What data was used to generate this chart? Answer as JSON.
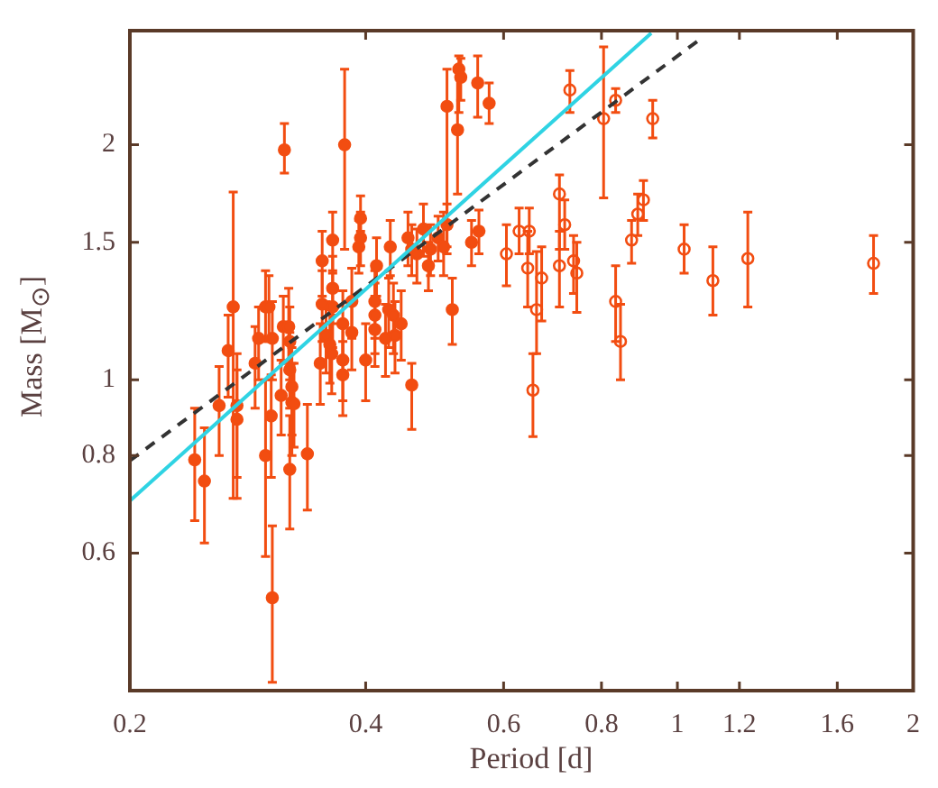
{
  "chart_data": {
    "type": "scatter",
    "xlabel": "Period [d]",
    "ylabel": "Mass [M$_{⊙}$]",
    "log": "xy",
    "xlim": [
      0.2,
      2
    ],
    "ylim": [
      0.4,
      2.8
    ],
    "xticks": [
      0.2,
      0.4,
      0.6,
      0.8,
      1,
      1.2,
      1.6,
      2
    ],
    "yticks": [
      0.6,
      0.8,
      1,
      1.5,
      2
    ],
    "grid": false,
    "legend": false,
    "marker": "circle",
    "series": [
      {
        "type": "scatter",
        "color": "#f24d11",
        "x": [
          0.315,
          0.376,
          0.271,
          0.267,
          0.242,
          0.249,
          0.26,
          0.274,
          0.298,
          0.303,
          0.304,
          0.312,
          0.32,
          0.322,
          0.322,
          0.337,
          0.374,
          0.458,
          0.274,
          0.298,
          0.301,
          0.292,
          0.289,
          0.304,
          0.314,
          0.319,
          0.32,
          0.32,
          0.324,
          0.352,
          0.352,
          0.363,
          0.363,
          0.35,
          0.362,
          0.508,
          0.526,
          0.529,
          0.524,
          0.556,
          0.575,
          0.394,
          0.392,
          0.394,
          0.413,
          0.43,
          0.453,
          0.458,
          0.465,
          0.474,
          0.484,
          0.495,
          0.481,
          0.516,
          0.546,
          0.558,
          0.411,
          0.411,
          0.411,
          0.428,
          0.434,
          0.444,
          0.436,
          0.424,
          0.4,
          0.384,
          0.384,
          0.374,
          0.374,
          0.363,
          0.356,
          0.36,
          0.503,
          0.508
        ],
        "values": [
          1.97,
          2.0,
          1.24,
          1.09,
          0.79,
          0.742,
          0.927,
          0.927,
          0.8,
          0.899,
          0.526,
          0.955,
          0.768,
          0.936,
          0.98,
          0.804,
          1.015,
          0.985,
          0.89,
          1.24,
          1.24,
          1.13,
          1.05,
          1.13,
          1.17,
          1.17,
          1.12,
          1.03,
          0.932,
          1.42,
          1.25,
          1.51,
          1.24,
          1.05,
          1.08,
          2.24,
          2.5,
          2.44,
          2.09,
          2.4,
          2.26,
          1.61,
          1.48,
          1.52,
          1.4,
          1.48,
          1.52,
          1.47,
          1.45,
          1.56,
          1.47,
          1.52,
          1.4,
          1.23,
          1.5,
          1.55,
          1.26,
          1.21,
          1.16,
          1.23,
          1.21,
          1.18,
          1.14,
          1.13,
          1.06,
          1.26,
          1.15,
          1.18,
          1.06,
          1.31,
          1.14,
          1.11,
          1.48,
          1.58
        ],
        "errors": [
          [
            1.84,
            2.13
          ],
          [
            1.47,
            2.5
          ],
          [
            0.705,
            1.74
          ],
          [
            0.95,
            1.21
          ],
          [
            0.66,
            0.92
          ],
          [
            0.618,
            0.868
          ],
          [
            0.8,
            1.04
          ],
          [
            0.705,
            1.08
          ],
          [
            0.594,
            1.0
          ],
          [
            0.75,
            1.015
          ],
          [
            0.41,
            0.65
          ],
          [
            0.85,
            1.06
          ],
          [
            0.644,
            0.9
          ],
          [
            0.8,
            1.05
          ],
          [
            0.85,
            1.1
          ],
          [
            0.681,
            0.93
          ],
          [
            0.9,
            1.12
          ],
          [
            0.864,
            1.05
          ],
          [
            0.75,
            1.03
          ],
          [
            1.12,
            1.38
          ],
          [
            1.12,
            1.36
          ],
          [
            1.0,
            1.24
          ],
          [
            0.92,
            1.17
          ],
          [
            1.0,
            1.26
          ],
          [
            1.05,
            1.28
          ],
          [
            1.05,
            1.31
          ],
          [
            1.0,
            1.24
          ],
          [
            0.92,
            1.15
          ],
          [
            0.82,
            1.05
          ],
          [
            1.28,
            1.55
          ],
          [
            1.12,
            1.38
          ],
          [
            1.38,
            1.64
          ],
          [
            1.1,
            1.37
          ],
          [
            0.93,
            1.18
          ],
          [
            0.96,
            1.21
          ],
          [
            1.45,
            2.5
          ],
          [
            2.2,
            2.6
          ],
          [
            2.28,
            2.58
          ],
          [
            1.73,
            2.5
          ],
          [
            2.17,
            2.6
          ],
          [
            2.13,
            2.4
          ],
          [
            1.55,
            1.72
          ],
          [
            1.37,
            1.6
          ],
          [
            1.4,
            1.64
          ],
          [
            1.28,
            1.52
          ],
          [
            1.36,
            1.6
          ],
          [
            1.4,
            1.64
          ],
          [
            1.36,
            1.58
          ],
          [
            1.33,
            1.56
          ],
          [
            1.44,
            1.68
          ],
          [
            1.36,
            1.58
          ],
          [
            1.42,
            1.62
          ],
          [
            1.3,
            1.5
          ],
          [
            1.11,
            1.35
          ],
          [
            1.4,
            1.6
          ],
          [
            1.45,
            1.65
          ],
          [
            1.13,
            1.38
          ],
          [
            1.08,
            1.33
          ],
          [
            1.04,
            1.28
          ],
          [
            1.1,
            1.35
          ],
          [
            1.08,
            1.33
          ],
          [
            1.06,
            1.3
          ],
          [
            1.02,
            1.26
          ],
          [
            1.01,
            1.25
          ],
          [
            0.94,
            1.18
          ],
          [
            1.13,
            1.39
          ],
          [
            1.03,
            1.27
          ],
          [
            1.05,
            1.3
          ],
          [
            0.94,
            1.18
          ],
          [
            1.18,
            1.44
          ],
          [
            1.02,
            1.26
          ],
          [
            0.99,
            1.23
          ],
          [
            1.36,
            1.64
          ],
          [
            1.48,
            1.68
          ]
        ]
      },
      {
        "type": "scatter",
        "color": "#f24d11",
        "marker": "circle",
        "x": [
          0.729,
          0.805,
          0.834,
          0.93,
          0.707,
          0.718,
          0.628,
          0.647,
          0.605,
          0.644,
          0.671,
          0.707,
          0.737,
          0.744,
          0.661,
          0.654,
          0.834,
          0.846,
          0.874,
          0.89,
          0.905,
          1.02,
          1.11,
          1.23,
          1.78
        ],
        "values": [
          2.35,
          2.16,
          2.28,
          2.16,
          1.73,
          1.58,
          1.55,
          1.55,
          1.45,
          1.39,
          1.35,
          1.4,
          1.42,
          1.37,
          1.23,
          0.97,
          1.26,
          1.12,
          1.51,
          1.63,
          1.7,
          1.47,
          1.34,
          1.43,
          1.41
        ],
        "errors": [
          [
            2.2,
            2.49
          ],
          [
            1.71,
            2.67
          ],
          [
            2.2,
            2.36
          ],
          [
            2.04,
            2.28
          ],
          [
            1.47,
            1.83
          ],
          [
            1.47,
            1.7
          ],
          [
            1.45,
            1.66
          ],
          [
            1.45,
            1.66
          ],
          [
            1.32,
            1.58
          ],
          [
            1.24,
            1.55
          ],
          [
            1.19,
            1.48
          ],
          [
            1.24,
            1.55
          ],
          [
            1.29,
            1.53
          ],
          [
            1.22,
            1.5
          ],
          [
            1.08,
            1.46
          ],
          [
            0.846,
            1.08
          ],
          [
            1.12,
            1.4
          ],
          [
            1.0,
            1.25
          ],
          [
            1.41,
            1.6
          ],
          [
            1.53,
            1.73
          ],
          [
            1.6,
            1.8
          ],
          [
            1.37,
            1.58
          ],
          [
            1.21,
            1.48
          ],
          [
            1.24,
            1.64
          ],
          [
            1.29,
            1.53
          ]
        ]
      },
      {
        "type": "line",
        "color": "#2fd3e3",
        "marker": "none",
        "line_style": "solid",
        "x": [
          0.2,
          0.926
        ],
        "values": [
          0.7,
          2.78
        ]
      },
      {
        "type": "line",
        "color": "#333333",
        "marker": "none",
        "line_style": "dashed",
        "x": [
          0.2,
          1.064
        ],
        "values": [
          0.788,
          2.72
        ]
      }
    ]
  }
}
